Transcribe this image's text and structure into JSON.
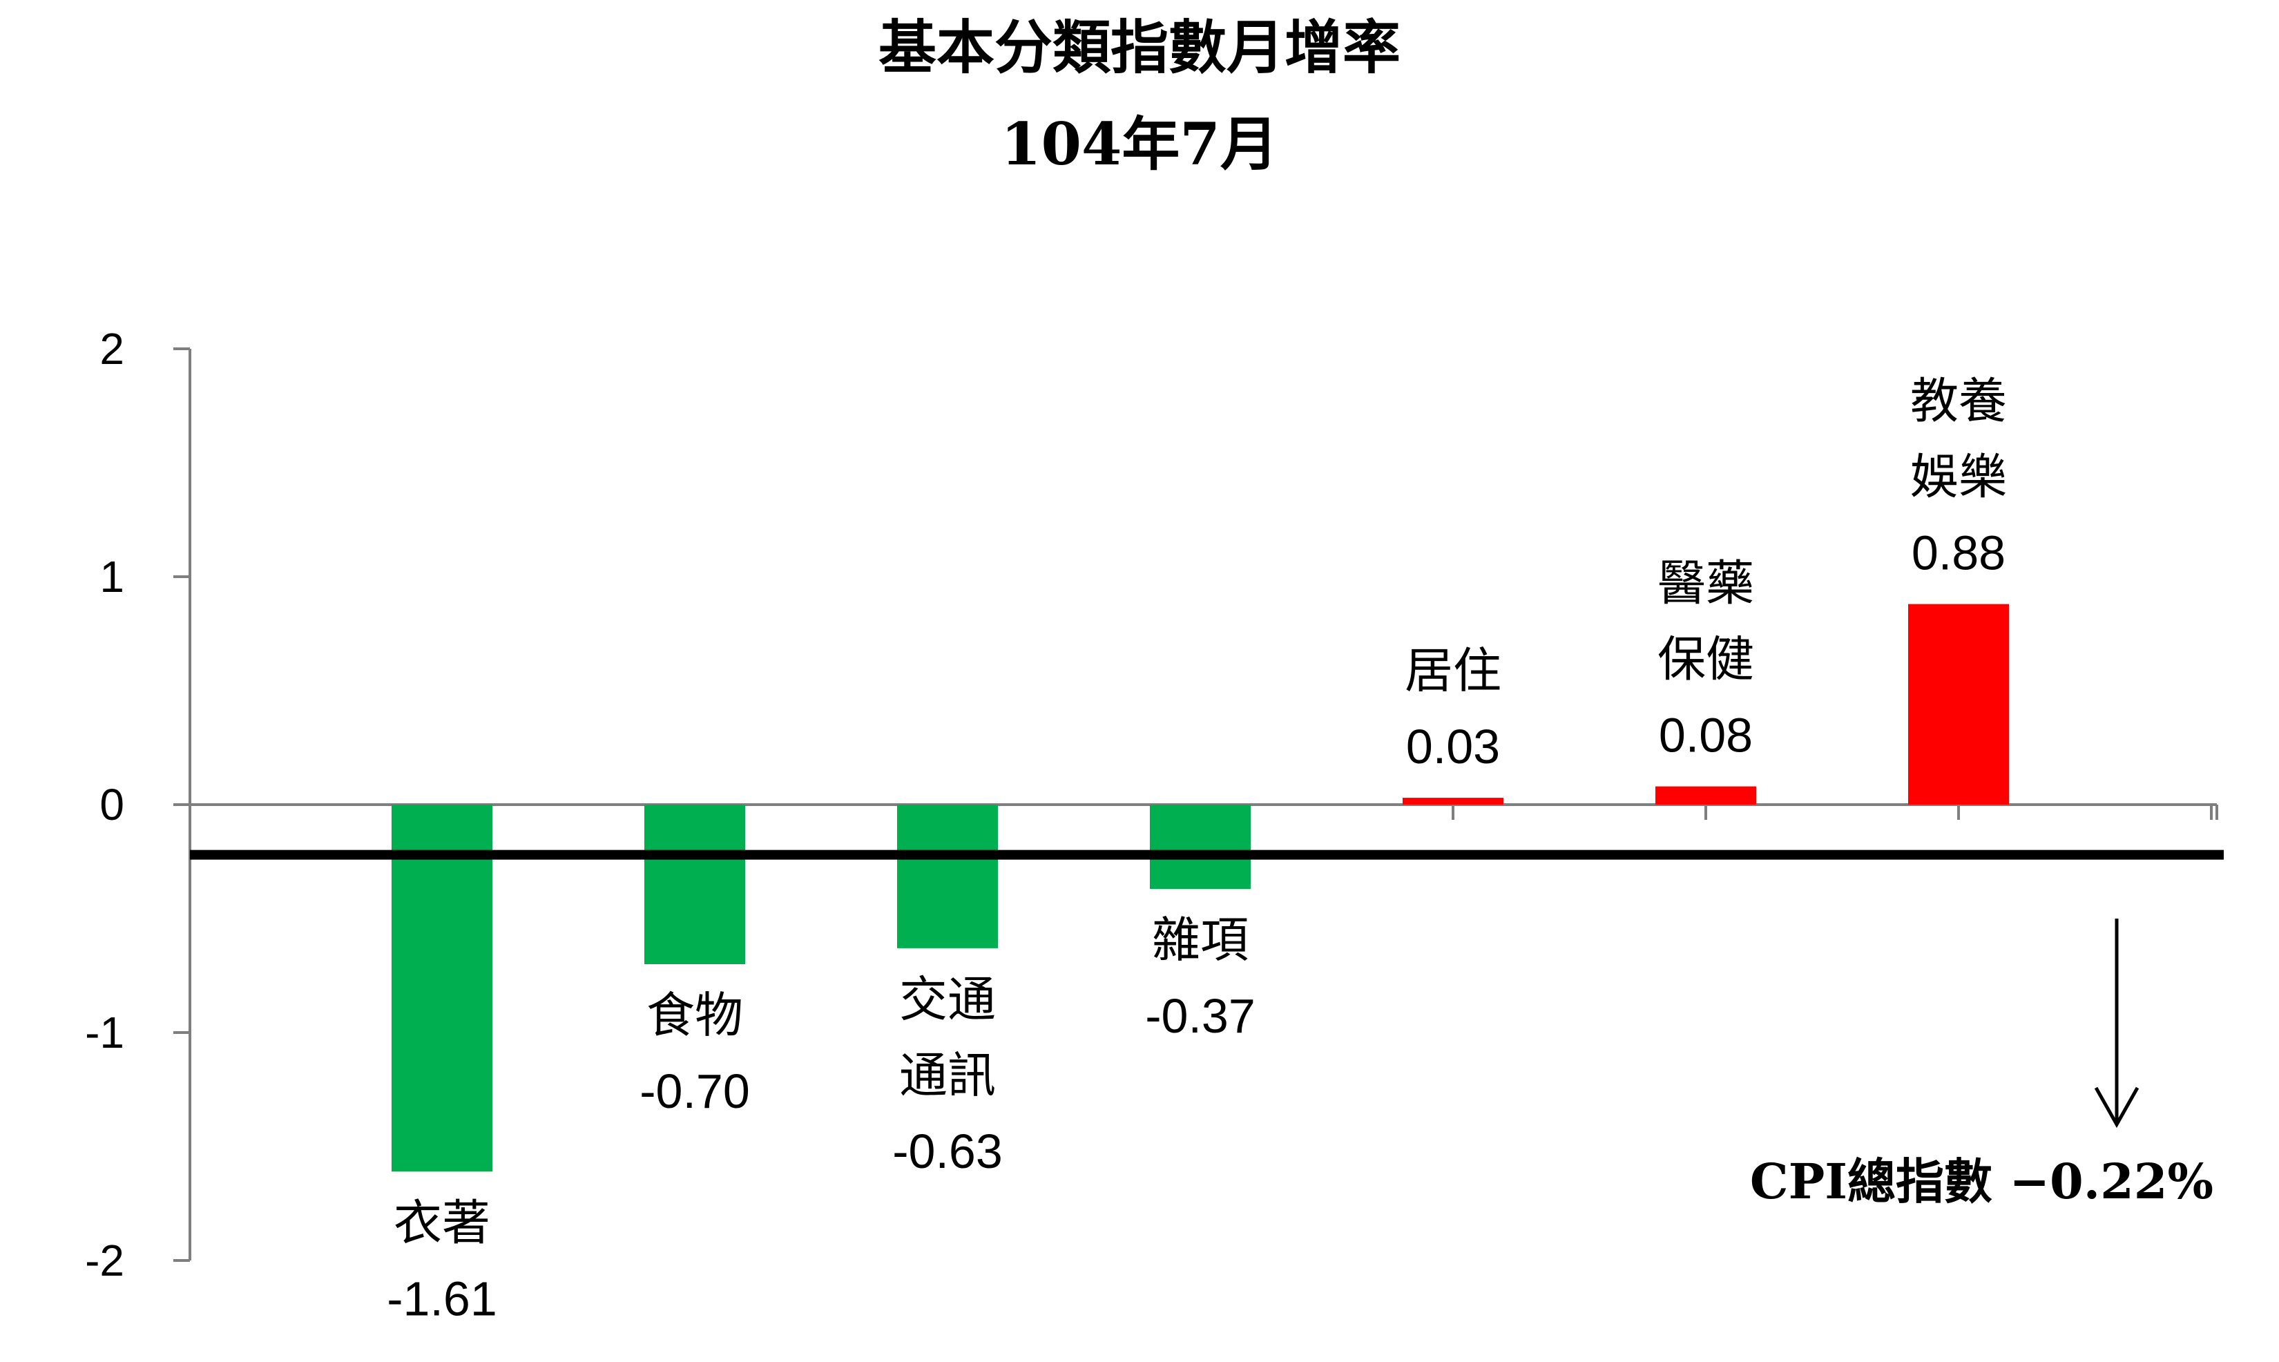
{
  "chart_data": {
    "type": "bar",
    "title": "基本分類指數月增率",
    "subtitle": "104年7月",
    "xlabel": "",
    "ylabel": "",
    "ylim": [
      -2,
      2
    ],
    "yticks": [
      "2",
      "1",
      "0",
      "-1",
      "-2"
    ],
    "categories": [
      [
        "衣著"
      ],
      [
        "食物"
      ],
      [
        "交通",
        "通訊"
      ],
      [
        "雜項"
      ],
      [
        "居住"
      ],
      [
        "醫藥",
        "保健"
      ],
      [
        "教養",
        "娛樂"
      ]
    ],
    "values": [
      -1.61,
      -0.7,
      -0.63,
      -0.37,
      0.03,
      0.08,
      0.88
    ],
    "value_labels": [
      "-1.61",
      "-0.70",
      "-0.63",
      "-0.37",
      "0.03",
      "0.08",
      "0.88"
    ],
    "reference_line": {
      "value": -0.22,
      "label": "CPI總指數  −0.22%"
    },
    "grid": false,
    "colors": {
      "negative": "#00B050",
      "positive": "#FF0000",
      "axis": "#7F7F7F",
      "reference": "#000000"
    }
  }
}
